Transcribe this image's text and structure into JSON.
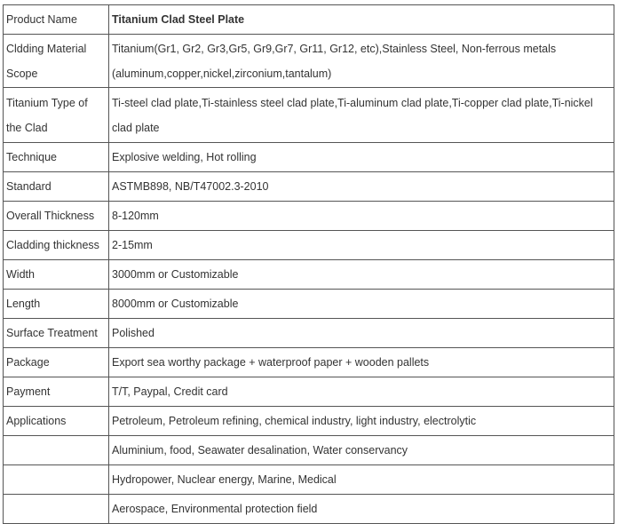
{
  "table": {
    "rows": [
      {
        "label": "Product Name",
        "value": "Titanium Clad Steel Plate"
      },
      {
        "label": "Cldding Material Scope",
        "value": "Titanium(Gr1, Gr2, Gr3,Gr5, Gr9,Gr7, Gr11, Gr12, etc),Stainless Steel, Non-ferrous metals (aluminum,copper,nickel,zirconium,tantalum)"
      },
      {
        "label": "Titanium Type of the Clad",
        "value": "Ti-steel clad plate,Ti-stainless steel clad plate,Ti-aluminum clad plate,Ti-copper clad plate,Ti-nickel clad plate"
      },
      {
        "label": "Technique",
        "value": "Explosive welding, Hot rolling"
      },
      {
        "label": "Standard",
        "value": "ASTMB898,  NB/T47002.3-2010"
      },
      {
        "label": "Overall Thickness",
        "value": "8-120mm"
      },
      {
        "label": "Cladding thickness",
        "value": "2-15mm"
      },
      {
        "label": "Width",
        "value": "3000mm or Customizable"
      },
      {
        "label": "Length",
        "value": "8000mm or Customizable"
      },
      {
        "label": "Surface Treatment",
        "value": "Polished"
      },
      {
        "label": "Package",
        "value": "Export sea worthy package + waterproof paper + wooden pallets"
      },
      {
        "label": "Payment",
        "value": "T/T,    Paypal, Credit card"
      },
      {
        "label": "Applications",
        "value": "Petroleum, Petroleum refining, chemical industry, light industry, electrolytic"
      },
      {
        "label": "",
        "value": "Aluminium, food, Seawater desalination, Water conservancy"
      },
      {
        "label": "",
        "value": "Hydropower, Nuclear energy, Marine, Medical"
      },
      {
        "label": "",
        "value": "Aerospace, Environmental protection field"
      }
    ]
  }
}
